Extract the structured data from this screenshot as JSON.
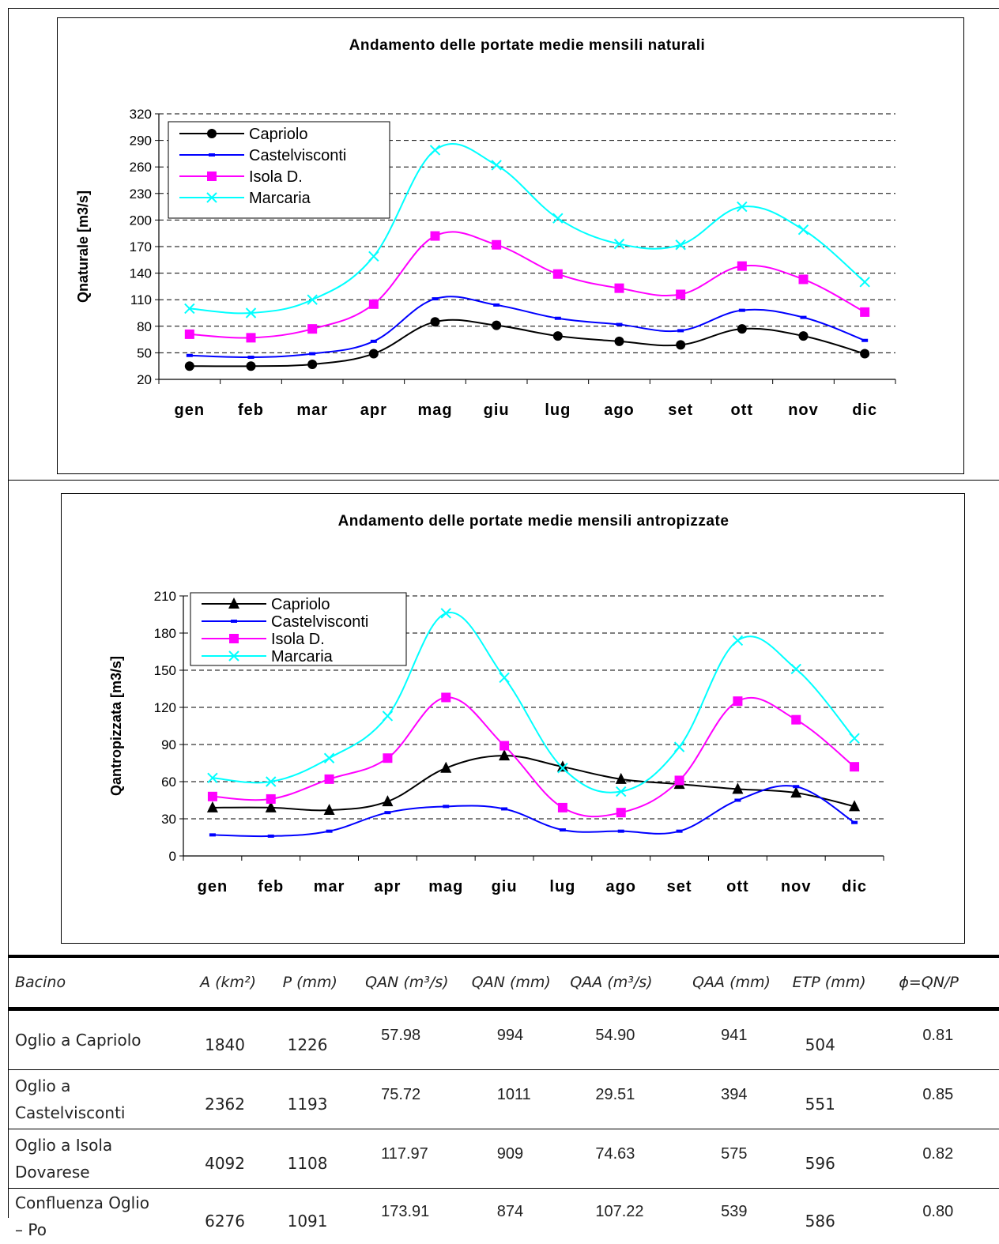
{
  "chart_data": [
    {
      "type": "line",
      "title": "Andamento delle portate medie mensili naturali",
      "xlabel": "",
      "ylabel": "Qnaturale [m3/s]",
      "ylim": [
        20,
        320
      ],
      "yticks": [
        20,
        50,
        80,
        110,
        140,
        170,
        200,
        230,
        260,
        290,
        320
      ],
      "grid": "dashed horizontal",
      "legend": "top-left",
      "categories": [
        "gen",
        "feb",
        "mar",
        "apr",
        "mag",
        "giu",
        "lug",
        "ago",
        "set",
        "ott",
        "nov",
        "dic"
      ],
      "series": [
        {
          "name": "Capriolo",
          "color": "#000000",
          "marker": "circle",
          "values": [
            35,
            35,
            37,
            49,
            85,
            81,
            69,
            63,
            59,
            77,
            69,
            49
          ]
        },
        {
          "name": "Castelvisconti",
          "color": "#0000ff",
          "marker": "dash",
          "values": [
            47,
            45,
            49,
            63,
            111,
            104,
            89,
            82,
            75,
            98,
            90,
            64
          ]
        },
        {
          "name": "Isola D.",
          "color": "#ff00ff",
          "marker": "square",
          "values": [
            71,
            67,
            77,
            105,
            182,
            172,
            139,
            123,
            116,
            148,
            133,
            96
          ]
        },
        {
          "name": "Marcaria",
          "color": "#00ffff",
          "marker": "x",
          "values": [
            100,
            95,
            110,
            159,
            279,
            262,
            202,
            173,
            172,
            215,
            189,
            130
          ]
        }
      ]
    },
    {
      "type": "line",
      "title": "Andamento delle portate medie mensili antropizzate",
      "xlabel": "",
      "ylabel": "Qantropizzata [m3/s]",
      "ylim": [
        0,
        210
      ],
      "yticks": [
        0,
        30,
        60,
        90,
        120,
        150,
        180,
        210
      ],
      "grid": "dashed horizontal",
      "legend": "top-left",
      "categories": [
        "gen",
        "feb",
        "mar",
        "apr",
        "mag",
        "giu",
        "lug",
        "ago",
        "set",
        "ott",
        "nov",
        "dic"
      ],
      "series": [
        {
          "name": "Capriolo",
          "color": "#000000",
          "marker": "triangle",
          "values": [
            39,
            39,
            37,
            44,
            71,
            81,
            72,
            62,
            58,
            54,
            51,
            40
          ]
        },
        {
          "name": "Castelvisconti",
          "color": "#0000ff",
          "marker": "dash",
          "values": [
            17,
            16,
            20,
            35,
            40,
            38,
            21,
            20,
            20,
            45,
            56,
            27
          ]
        },
        {
          "name": "Isola D.",
          "color": "#ff00ff",
          "marker": "square",
          "values": [
            48,
            46,
            62,
            79,
            128,
            89,
            39,
            35,
            61,
            125,
            110,
            72
          ]
        },
        {
          "name": "Marcaria",
          "color": "#00ffff",
          "marker": "x",
          "values": [
            63,
            60,
            79,
            113,
            196,
            144,
            71,
            52,
            88,
            174,
            151,
            95
          ]
        }
      ]
    }
  ],
  "table": {
    "headers": [
      "Bacino",
      "A (km²)",
      "P (mm)",
      "QAN (m³/s)",
      "QAN (mm)",
      "QAA (m³/s)",
      "QAA (mm)",
      "ETP (mm)",
      "ϕ=QN/P"
    ],
    "rows": [
      {
        "name_lines": [
          "Oglio a Capriolo"
        ],
        "cells": [
          "1840",
          "1226",
          "57.98",
          "994",
          "54.90",
          "941",
          "504",
          "0.81"
        ]
      },
      {
        "name_lines": [
          "Oglio a",
          "Castelvisconti"
        ],
        "cells": [
          "2362",
          "1193",
          "75.72",
          "1011",
          "29.51",
          "394",
          "551",
          "0.85"
        ]
      },
      {
        "name_lines": [
          "Oglio a Isola",
          "Dovarese"
        ],
        "cells": [
          "4092",
          "1108",
          "117.97",
          "909",
          "74.63",
          "575",
          "596",
          "0.82"
        ]
      },
      {
        "name_lines": [
          "Confluenza Oglio",
          "– Po"
        ],
        "cells": [
          "6276",
          "1091",
          "173.91",
          "874",
          "107.22",
          "539",
          "586",
          "0.80"
        ]
      }
    ]
  }
}
